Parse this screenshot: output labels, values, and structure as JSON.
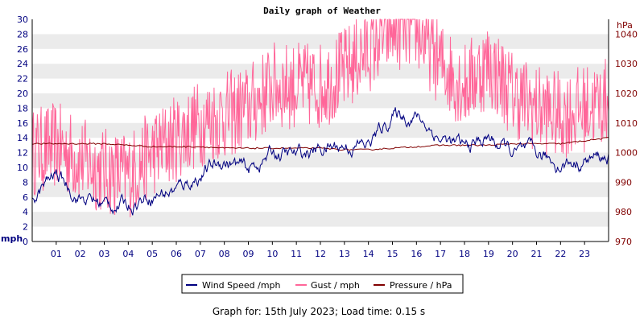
{
  "chart_data": {
    "type": "line",
    "title": "Daily graph of Weather",
    "x_tick_labels": [
      "01",
      "02",
      "03",
      "04",
      "05",
      "06",
      "07",
      "08",
      "09",
      "10",
      "11",
      "12",
      "13",
      "14",
      "15",
      "16",
      "17",
      "18",
      "19",
      "20",
      "21",
      "22",
      "23"
    ],
    "x_range_hours": [
      0,
      24
    ],
    "left_axis": {
      "unit": "mph",
      "range": [
        0,
        30
      ],
      "ticks": [
        "0",
        "2",
        "4",
        "6",
        "8",
        "10",
        "12",
        "14",
        "16",
        "18",
        "20",
        "22",
        "24",
        "26",
        "28",
        "30"
      ]
    },
    "right_axis": {
      "unit": "hPa",
      "range": [
        970,
        1045
      ],
      "ticks": [
        "970",
        "980",
        "990",
        "1000",
        "1010",
        "1020",
        "1030",
        "1040"
      ]
    },
    "grid": "horizontal bands",
    "series": [
      {
        "name": "Wind Speed /mph",
        "axis": "left",
        "color": "#000080",
        "x": [
          0,
          1,
          2,
          3,
          4,
          5,
          6,
          7,
          8,
          9,
          10,
          11,
          12,
          13,
          14,
          15,
          16,
          17,
          18,
          19,
          20,
          21,
          22,
          23,
          24
        ],
        "values": [
          6,
          9,
          6,
          5,
          5,
          6.5,
          7,
          9,
          11,
          9.5,
          12,
          11.5,
          12.5,
          13,
          13,
          17,
          17,
          14,
          12.5,
          14,
          12,
          11.5,
          10.5,
          11,
          11.5
        ]
      },
      {
        "name": "Gust / mph",
        "axis": "left",
        "color": "#ff6699",
        "x": [
          0,
          1,
          2,
          3,
          4,
          5,
          6,
          7,
          8,
          9,
          10,
          11,
          12,
          13,
          14,
          15,
          16,
          17,
          18,
          19,
          20,
          21,
          22,
          23,
          24
        ],
        "values": [
          12,
          13,
          11,
          9.5,
          9,
          12,
          14,
          16,
          17,
          18,
          21,
          21,
          21,
          23,
          26,
          29,
          29,
          24,
          21,
          24,
          20,
          18,
          17,
          18,
          19
        ]
      },
      {
        "name": "Pressure / hPa",
        "axis": "right",
        "color": "#800000",
        "x": [
          0,
          1,
          2,
          3,
          4,
          5,
          6,
          7,
          8,
          9,
          10,
          11,
          12,
          13,
          14,
          15,
          16,
          17,
          18,
          19,
          20,
          21,
          22,
          23,
          24
        ],
        "values": [
          1003,
          1003,
          1003,
          1003,
          1002.5,
          1002,
          1002,
          1002,
          1001.5,
          1001.5,
          1001.5,
          1001.5,
          1001.5,
          1001,
          1001,
          1001.5,
          1002,
          1002.5,
          1002.5,
          1002.5,
          1003,
          1003,
          1003,
          1004,
          1005
        ]
      }
    ]
  },
  "legend": {
    "wind": "Wind Speed /mph",
    "gust": "Gust / mph",
    "pressure": "Pressure / hPa"
  },
  "footer": "Graph for: 15th July 2023; Load time: 0.15 s",
  "colors": {
    "wind": "#000080",
    "gust": "#ff6699",
    "pressure": "#800000",
    "band": "#ebebeb"
  }
}
